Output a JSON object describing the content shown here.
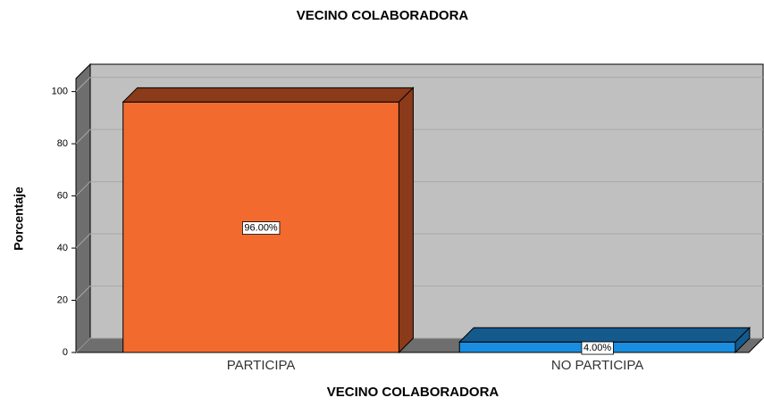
{
  "chart_data": {
    "type": "bar3d",
    "title": "VECINO COLABORADORA",
    "x_label": "VECINO COLABORADORA",
    "y_label": "Porcentaje",
    "categories": [
      "PARTICIPA",
      "NO PARTICIPA"
    ],
    "values": [
      96,
      4
    ],
    "value_labels": [
      "96.00%",
      "4.00%"
    ],
    "colors": [
      "#f26a2e",
      "#1a8de0"
    ],
    "side_colors": [
      "#8b3a1a",
      "#155a8c"
    ],
    "ylim": [
      0,
      105
    ],
    "yticks": [
      0,
      20,
      40,
      60,
      80,
      100
    ],
    "grid": true
  }
}
